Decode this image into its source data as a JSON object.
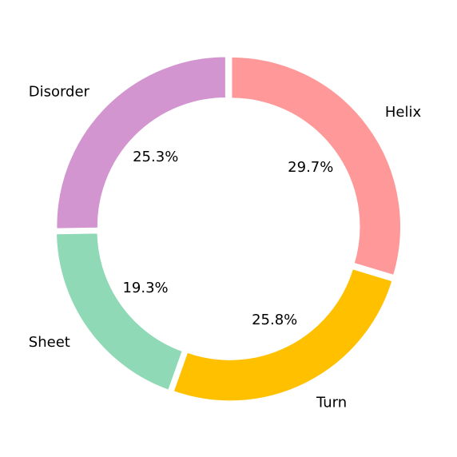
{
  "chart_data": {
    "type": "pie",
    "variant": "donut",
    "title": "",
    "start_angle_deg": 90,
    "direction": "clockwise",
    "slices": [
      {
        "label": "Helix",
        "value": 29.7,
        "pct_label": "29.7%",
        "color": "#ff9999"
      },
      {
        "label": "Turn",
        "value": 25.8,
        "pct_label": "25.8%",
        "color": "#ffc000"
      },
      {
        "label": "Sheet",
        "value": 19.3,
        "pct_label": "19.3%",
        "color": "#8fd9b6"
      },
      {
        "label": "Disorder",
        "value": 25.3,
        "pct_label": "25.3%",
        "color": "#d395d0"
      }
    ]
  }
}
